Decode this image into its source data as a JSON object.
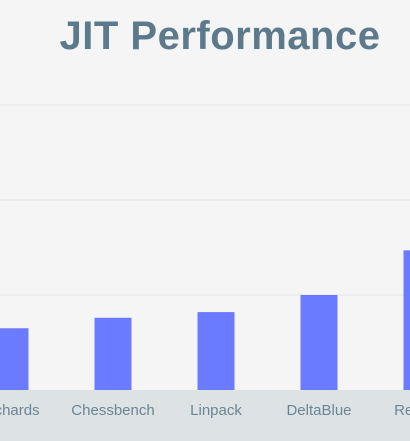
{
  "chart_data": {
    "type": "bar",
    "title": "JIT Performance",
    "categories": [
      "Richards",
      "Chessbench",
      "Linpack",
      "DeltaBlue",
      "Reverse"
    ],
    "values": [
      0.65,
      0.76,
      0.82,
      1.0,
      1.47
    ],
    "ylim": [
      0,
      3
    ],
    "grid": true,
    "xlabel": "",
    "ylabel": "",
    "colors": {
      "bar": "#6b7bff",
      "grid": "#e3e5e5",
      "axis_band": "#dde3e4",
      "title": "#5d7a8c"
    }
  }
}
